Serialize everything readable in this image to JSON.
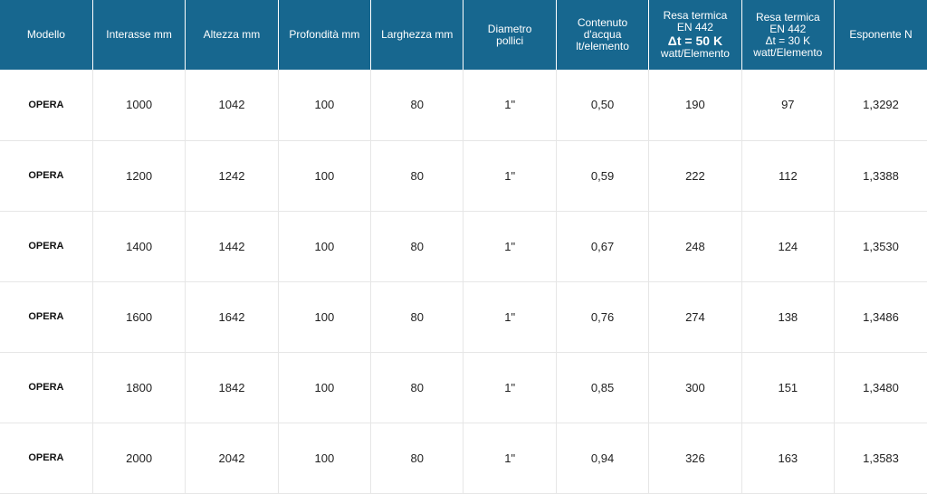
{
  "headers": {
    "modello": "Modello",
    "interasse": "Interasse mm",
    "altezza": "Altezza mm",
    "profondita": "Profondità mm",
    "larghezza": "Larghezza mm",
    "diametro": [
      "Diametro",
      "pollici"
    ],
    "contenuto": [
      "Contenuto",
      "d'acqua",
      "lt/elemento"
    ],
    "resa50": [
      "Resa termica",
      "EN 442",
      "Δt = 50 K",
      "watt/Elemento"
    ],
    "resa30": [
      "Resa termica",
      "EN 442",
      "Δt = 30 K",
      "watt/Elemento"
    ],
    "esponente": "Esponente N"
  },
  "rows": [
    [
      "OPERA",
      "1000",
      "1042",
      "100",
      "80",
      "1\"",
      "0,50",
      "190",
      "97",
      "1,3292"
    ],
    [
      "OPERA",
      "1200",
      "1242",
      "100",
      "80",
      "1\"",
      "0,59",
      "222",
      "112",
      "1,3388"
    ],
    [
      "OPERA",
      "1400",
      "1442",
      "100",
      "80",
      "1\"",
      "0,67",
      "248",
      "124",
      "1,3530"
    ],
    [
      "OPERA",
      "1600",
      "1642",
      "100",
      "80",
      "1\"",
      "0,76",
      "274",
      "138",
      "1,3486"
    ],
    [
      "OPERA",
      "1800",
      "1842",
      "100",
      "80",
      "1\"",
      "0,85",
      "300",
      "151",
      "1,3480"
    ],
    [
      "OPERA",
      "2000",
      "2042",
      "100",
      "80",
      "1\"",
      "0,94",
      "326",
      "163",
      "1,3583"
    ]
  ],
  "colors": {
    "header_bg": "#17678f",
    "header_text": "#ffffff",
    "grid": "#e6e6e6"
  }
}
